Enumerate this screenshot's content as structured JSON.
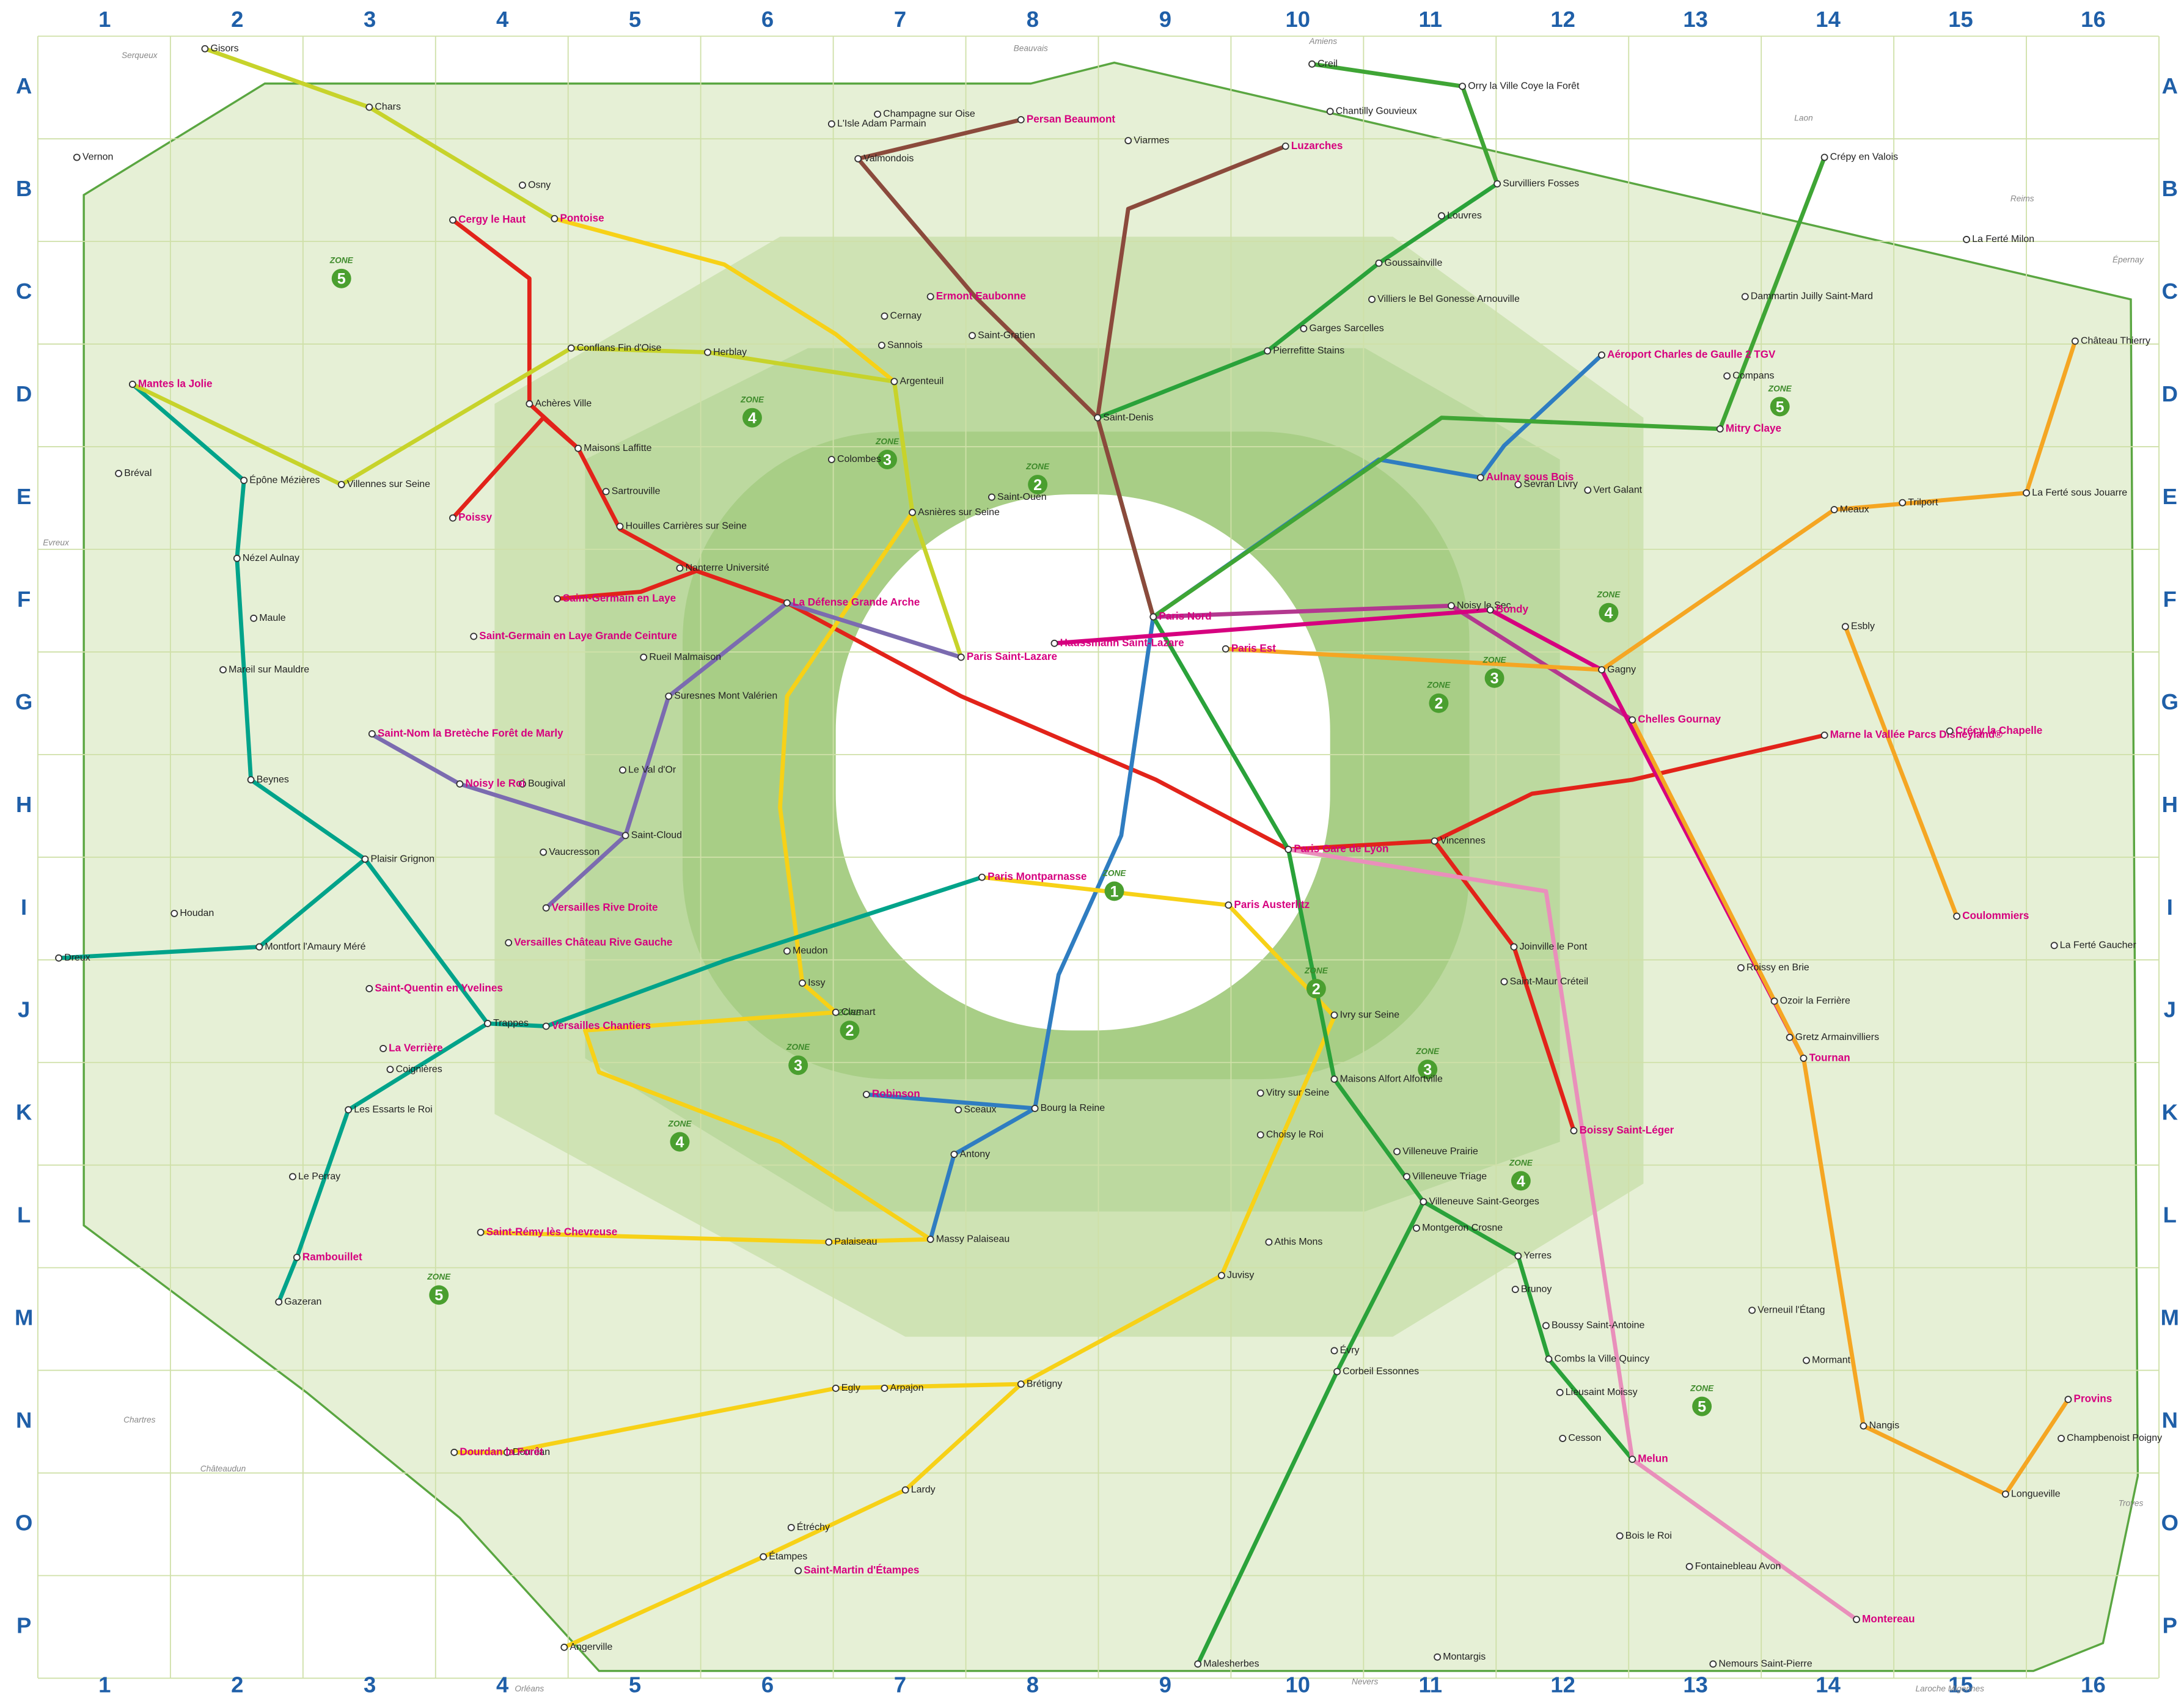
{
  "grid": {
    "columns": [
      "1",
      "2",
      "3",
      "4",
      "5",
      "6",
      "7",
      "8",
      "9",
      "10",
      "11",
      "12",
      "13",
      "14",
      "15",
      "16"
    ],
    "rows": [
      "A",
      "B",
      "C",
      "D",
      "E",
      "F",
      "G",
      "H",
      "I",
      "J",
      "K",
      "L",
      "M",
      "N",
      "O",
      "P"
    ]
  },
  "zones": [
    {
      "word": "ZONE",
      "number": "5"
    },
    {
      "word": "ZONE",
      "number": "5"
    },
    {
      "word": "ZONE",
      "number": "5"
    },
    {
      "word": "ZONE",
      "number": "5"
    },
    {
      "word": "ZONE",
      "number": "4"
    },
    {
      "word": "ZONE",
      "number": "4"
    },
    {
      "word": "ZONE",
      "number": "4"
    },
    {
      "word": "ZONE",
      "number": "4"
    },
    {
      "word": "ZONE",
      "number": "3"
    },
    {
      "word": "ZONE",
      "number": "3"
    },
    {
      "word": "ZONE",
      "number": "3"
    },
    {
      "word": "ZONE",
      "number": "3"
    },
    {
      "word": "ZONE",
      "number": "2"
    },
    {
      "word": "ZONE",
      "number": "2"
    },
    {
      "word": "ZONE",
      "number": "2"
    },
    {
      "word": "ZONE",
      "number": "2"
    },
    {
      "word": "ZONE",
      "number": "1"
    }
  ],
  "major_stations": [
    "Cergy le Haut",
    "Pontoise",
    "Mantes la Jolie",
    "Poissy",
    "Saint-Germain en Laye",
    "Saint-Germain en Laye Grande Ceinture",
    "Saint-Nom la Bretèche Forêt de Marly",
    "Noisy le Roi",
    "Versailles Château Rive Gauche",
    "Versailles Rive Droite",
    "Versailles Chantiers",
    "Saint-Quentin en Yvelines",
    "La Verrière",
    "Saint-Rémy lès Chevreuse",
    "Rambouillet",
    "Dourdan la Forêt",
    "Saint-Martin d'Étampes",
    "La Défense Grande Arche",
    "Paris Saint-Lazare",
    "Haussmann Saint-Lazare",
    "Paris Nord",
    "Paris Est",
    "Paris Gare de Lyon",
    "Paris Austerlitz",
    "Paris Montparnasse",
    "Robinson",
    "Ermont Eaubonne",
    "Persan Beaumont",
    "Luzarches",
    "Aulnay sous Bois",
    "Bondy",
    "Chelles Gournay",
    "Marne la Vallée Parcs Disneyland®",
    "Crécy la Chapelle",
    "Coulommiers",
    "Tournan",
    "Boissy Saint-Léger",
    "Melun",
    "Montereau",
    "Provins",
    "Mitry Claye",
    "Aéroport Charles de Gaulle 2 TGV"
  ],
  "stations": [
    "Gisors",
    "Vernon",
    "Dreux",
    "Chars",
    "Osny",
    "Conflans Fin d'Oise",
    "Achères Ville",
    "Maisons Laffitte",
    "Sartrouville",
    "Houilles Carrières sur Seine",
    "Nanterre Université",
    "Rueil Malmaison",
    "Suresnes Mont Valérien",
    "Le Val d'Or",
    "Saint-Cloud",
    "Bougival",
    "Vaucresson",
    "Plaisir Grignon",
    "Trappes",
    "Coignières",
    "Les Essarts le Roi",
    "Le Perray",
    "Gazeran",
    "Bréval",
    "Épône Mézières",
    "Villennes sur Seine",
    "Nézel Aulnay",
    "Maule",
    "Mareil sur Mauldre",
    "Beynes",
    "Houdan",
    "Montfort l'Amaury Méré",
    "Argenteuil",
    "Sannois",
    "Herblay",
    "Colombes",
    "Asnières sur Seine",
    "Saint-Ouen",
    "Saint-Denis",
    "Pierrefitte Stains",
    "Garges Sarcelles",
    "Goussainville",
    "Louvres",
    "Survilliers Fosses",
    "Villiers le Bel Gonesse Arnouville",
    "Sevran Livry",
    "Vert Galant",
    "Gagny",
    "Noisy le Sec",
    "Vincennes",
    "Joinville le Pont",
    "Saint-Maur Créteil",
    "Ivry sur Seine",
    "Vitry sur Seine",
    "Choisy le Roi",
    "Juvisy",
    "Athis Mons",
    "Massy Palaiseau",
    "Antony",
    "Bourg la Reine",
    "Sceaux",
    "Meudon",
    "Clamart",
    "Issy",
    "Palaiseau",
    "Corbeil Essonnes",
    "Évry",
    "Brétigny",
    "Étampes",
    "Étréchy",
    "Lardy",
    "Arpajon",
    "Egly",
    "Dourdan",
    "Angerville",
    "Malesherbes",
    "Montargis",
    "Nemours Saint-Pierre",
    "Fontainebleau Avon",
    "Bois le Roi",
    "Cesson",
    "Lieusaint Moissy",
    "Combs la Ville Quincy",
    "Boussy Saint-Antoine",
    "Yerres",
    "Brunoy",
    "Montgeron Crosne",
    "Villeneuve Saint-Georges",
    "Villeneuve Triage",
    "Villeneuve Prairie",
    "Maisons Alfort Alfortville",
    "Roissy en Brie",
    "Ozoir la Ferrière",
    "Gretz Armainvilliers",
    "Verneuil l'Étang",
    "Mormant",
    "Nangis",
    "Longueville",
    "Champbenoist Poigny",
    "La Ferté Gaucher",
    "Meaux",
    "Trilport",
    "Esbly",
    "La Ferté sous Jouarre",
    "Château Thierry",
    "Crépy en Valois",
    "Dammartin Juilly Saint-Mard",
    "Compans",
    "La Ferté Milon",
    "Orry la Ville Coye la Forêt",
    "Creil",
    "Chantilly Gouvieux",
    "Viarmes",
    "Valmondois",
    "Cernay",
    "Saint-Gratien",
    "Champagne sur Oise",
    "L'Isle Adam Parmain"
  ],
  "destinations": [
    "Serqueux",
    "Beauvais",
    "Amiens",
    "Laon",
    "Reims",
    "Épernay",
    "Evreux",
    "Chartres",
    "Châteaudun",
    "Orléans",
    "Nevers",
    "Troyes",
    "Laroche Migennes"
  ]
}
